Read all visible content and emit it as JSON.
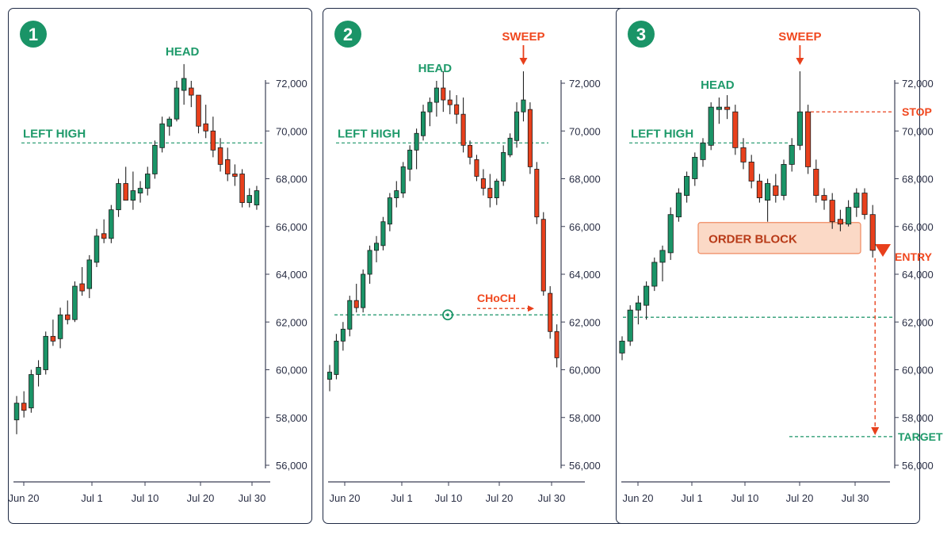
{
  "colors": {
    "bull": "#1a9467",
    "bear": "#e8401c",
    "green_text": "#1e9a6a",
    "orange_text": "#f0481f",
    "badge": "#1a9467",
    "axis": "#3b3f55",
    "ob_fill": "#fbd9c6",
    "ob_border": "#f08a60"
  },
  "chart_data": [
    {
      "type": "candlestick",
      "badge": "1",
      "x_ticks": [
        "Jun 20",
        "Jul 1",
        "Jul 10",
        "Jul 20",
        "Jul 30"
      ],
      "y_ticks": [
        "72,000",
        "70,000",
        "68,000",
        "66,000",
        "64,000",
        "62,000",
        "60,000",
        "58,000",
        "56,000"
      ],
      "ylim": [
        56000,
        72000
      ],
      "candles": [
        {
          "o": 57900,
          "h": 58900,
          "l": 57300,
          "c": 58600
        },
        {
          "o": 58600,
          "h": 59100,
          "l": 58000,
          "c": 58300
        },
        {
          "o": 58400,
          "h": 60000,
          "l": 58200,
          "c": 59800
        },
        {
          "o": 59800,
          "h": 60400,
          "l": 59300,
          "c": 60100
        },
        {
          "o": 60000,
          "h": 61600,
          "l": 59800,
          "c": 61400
        },
        {
          "o": 61400,
          "h": 62100,
          "l": 61000,
          "c": 61200
        },
        {
          "o": 61300,
          "h": 62600,
          "l": 60900,
          "c": 62300
        },
        {
          "o": 62300,
          "h": 62900,
          "l": 61900,
          "c": 62100
        },
        {
          "o": 62100,
          "h": 63700,
          "l": 62000,
          "c": 63500
        },
        {
          "o": 63600,
          "h": 64300,
          "l": 63100,
          "c": 63300
        },
        {
          "o": 63400,
          "h": 64800,
          "l": 63000,
          "c": 64600
        },
        {
          "o": 64500,
          "h": 65900,
          "l": 64300,
          "c": 65600
        },
        {
          "o": 65700,
          "h": 66300,
          "l": 65300,
          "c": 65500
        },
        {
          "o": 65500,
          "h": 66900,
          "l": 65300,
          "c": 66700
        },
        {
          "o": 66700,
          "h": 68000,
          "l": 66400,
          "c": 67800
        },
        {
          "o": 67800,
          "h": 68500,
          "l": 67100,
          "c": 67100
        },
        {
          "o": 67100,
          "h": 68300,
          "l": 66700,
          "c": 67500
        },
        {
          "o": 67400,
          "h": 67900,
          "l": 67000,
          "c": 67600
        },
        {
          "o": 67600,
          "h": 68500,
          "l": 67300,
          "c": 68200
        },
        {
          "o": 68200,
          "h": 69600,
          "l": 68000,
          "c": 69400
        },
        {
          "o": 69300,
          "h": 70600,
          "l": 69100,
          "c": 70300
        },
        {
          "o": 70200,
          "h": 70600,
          "l": 69800,
          "c": 70500
        },
        {
          "o": 70500,
          "h": 72100,
          "l": 70400,
          "c": 71800
        },
        {
          "o": 71700,
          "h": 72800,
          "l": 71100,
          "c": 72200
        },
        {
          "o": 71800,
          "h": 72100,
          "l": 71000,
          "c": 71500
        },
        {
          "o": 71500,
          "h": 71500,
          "l": 69900,
          "c": 70200
        },
        {
          "o": 70300,
          "h": 71100,
          "l": 69700,
          "c": 70000
        },
        {
          "o": 70000,
          "h": 70600,
          "l": 68900,
          "c": 69200
        },
        {
          "o": 69300,
          "h": 69700,
          "l": 68300,
          "c": 68600
        },
        {
          "o": 68800,
          "h": 69300,
          "l": 67900,
          "c": 68200
        },
        {
          "o": 68200,
          "h": 68600,
          "l": 67700,
          "c": 68100
        },
        {
          "o": 68200,
          "h": 68400,
          "l": 66800,
          "c": 67000
        },
        {
          "o": 67000,
          "h": 67600,
          "l": 66800,
          "c": 67300
        },
        {
          "o": 66900,
          "h": 67700,
          "l": 66700,
          "c": 67500
        }
      ],
      "annotations": [
        {
          "kind": "label",
          "text": "HEAD",
          "candle": 23
        },
        {
          "kind": "level",
          "text": "LEFT HIGH",
          "value": 69500
        }
      ]
    },
    {
      "type": "candlestick",
      "badge": "2",
      "x_ticks": [
        "Jun 20",
        "Jul 1",
        "Jul 10",
        "Jul 20",
        "Jul 30"
      ],
      "y_ticks": [
        "72,000",
        "70,000",
        "68,000",
        "66,000",
        "64,000",
        "62,000",
        "60,000",
        "58,000",
        "56,000"
      ],
      "ylim": [
        56000,
        72000
      ],
      "candles": [
        {
          "o": 59600,
          "h": 60200,
          "l": 59100,
          "c": 59900
        },
        {
          "o": 59800,
          "h": 61500,
          "l": 59600,
          "c": 61200
        },
        {
          "o": 61200,
          "h": 62000,
          "l": 60800,
          "c": 61700
        },
        {
          "o": 61700,
          "h": 63100,
          "l": 61400,
          "c": 62900
        },
        {
          "o": 62900,
          "h": 63600,
          "l": 62400,
          "c": 62600
        },
        {
          "o": 62600,
          "h": 64200,
          "l": 62400,
          "c": 64000
        },
        {
          "o": 64000,
          "h": 65200,
          "l": 63600,
          "c": 65000
        },
        {
          "o": 65000,
          "h": 65600,
          "l": 64500,
          "c": 65300
        },
        {
          "o": 65200,
          "h": 66400,
          "l": 65000,
          "c": 66200
        },
        {
          "o": 66100,
          "h": 67400,
          "l": 65800,
          "c": 67200
        },
        {
          "o": 67200,
          "h": 67900,
          "l": 66800,
          "c": 67500
        },
        {
          "o": 67400,
          "h": 68700,
          "l": 67200,
          "c": 68500
        },
        {
          "o": 68400,
          "h": 69400,
          "l": 67900,
          "c": 69200
        },
        {
          "o": 69200,
          "h": 70100,
          "l": 68400,
          "c": 69900
        },
        {
          "o": 69800,
          "h": 71100,
          "l": 69600,
          "c": 70800
        },
        {
          "o": 70800,
          "h": 71400,
          "l": 70200,
          "c": 71200
        },
        {
          "o": 71200,
          "h": 72100,
          "l": 70600,
          "c": 71800
        },
        {
          "o": 71800,
          "h": 72500,
          "l": 70800,
          "c": 71300
        },
        {
          "o": 71300,
          "h": 71700,
          "l": 70700,
          "c": 71100
        },
        {
          "o": 71100,
          "h": 71500,
          "l": 70300,
          "c": 70700
        },
        {
          "o": 70700,
          "h": 71400,
          "l": 69100,
          "c": 69400
        },
        {
          "o": 69400,
          "h": 69600,
          "l": 68600,
          "c": 68900
        },
        {
          "o": 68800,
          "h": 69000,
          "l": 67900,
          "c": 68100
        },
        {
          "o": 68000,
          "h": 68400,
          "l": 67300,
          "c": 67600
        },
        {
          "o": 67600,
          "h": 68200,
          "l": 66800,
          "c": 67200
        },
        {
          "o": 67200,
          "h": 68000,
          "l": 66900,
          "c": 67900
        },
        {
          "o": 67900,
          "h": 69400,
          "l": 67700,
          "c": 69100
        },
        {
          "o": 69000,
          "h": 69900,
          "l": 68900,
          "c": 69700
        },
        {
          "o": 69600,
          "h": 71200,
          "l": 69300,
          "c": 70800
        },
        {
          "o": 70800,
          "h": 72500,
          "l": 70400,
          "c": 71300
        },
        {
          "o": 70900,
          "h": 71200,
          "l": 68200,
          "c": 68500
        },
        {
          "o": 68400,
          "h": 68700,
          "l": 66100,
          "c": 66400
        },
        {
          "o": 66300,
          "h": 66600,
          "l": 63100,
          "c": 63300
        },
        {
          "o": 63200,
          "h": 63500,
          "l": 61300,
          "c": 61600
        },
        {
          "o": 61600,
          "h": 61900,
          "l": 60100,
          "c": 60500
        }
      ],
      "annotations": [
        {
          "kind": "label",
          "text": "HEAD",
          "candle": 16
        },
        {
          "kind": "label",
          "text": "SWEEP",
          "candle": 29
        },
        {
          "kind": "level",
          "text": "LEFT HIGH",
          "value": 69500
        },
        {
          "kind": "level",
          "text": "CHoCH",
          "value": 62300
        }
      ]
    },
    {
      "type": "candlestick",
      "badge": "3",
      "x_ticks": [
        "Jun 20",
        "Jul 1",
        "Jul 10",
        "Jul 20",
        "Jul 30"
      ],
      "y_ticks": [
        "72,000",
        "70,000",
        "68,000",
        "66,000",
        "64,000",
        "62,000",
        "60,000",
        "58,000",
        "56,000"
      ],
      "ylim": [
        56000,
        72000
      ],
      "candles": [
        {
          "o": 60700,
          "h": 61400,
          "l": 60400,
          "c": 61200
        },
        {
          "o": 61200,
          "h": 62700,
          "l": 61000,
          "c": 62500
        },
        {
          "o": 62500,
          "h": 63100,
          "l": 61900,
          "c": 62800
        },
        {
          "o": 62700,
          "h": 63700,
          "l": 62100,
          "c": 63500
        },
        {
          "o": 63500,
          "h": 64700,
          "l": 63300,
          "c": 64500
        },
        {
          "o": 64500,
          "h": 65200,
          "l": 63700,
          "c": 65000
        },
        {
          "o": 64900,
          "h": 66800,
          "l": 64600,
          "c": 66500
        },
        {
          "o": 66400,
          "h": 67600,
          "l": 66200,
          "c": 67400
        },
        {
          "o": 67300,
          "h": 68300,
          "l": 67000,
          "c": 68100
        },
        {
          "o": 68000,
          "h": 69100,
          "l": 67700,
          "c": 68900
        },
        {
          "o": 68800,
          "h": 69700,
          "l": 68500,
          "c": 69500
        },
        {
          "o": 69400,
          "h": 71200,
          "l": 69200,
          "c": 71000
        },
        {
          "o": 70900,
          "h": 71400,
          "l": 70300,
          "c": 71000
        },
        {
          "o": 71000,
          "h": 71500,
          "l": 70500,
          "c": 70900
        },
        {
          "o": 70800,
          "h": 71100,
          "l": 69000,
          "c": 69300
        },
        {
          "o": 69300,
          "h": 69700,
          "l": 68400,
          "c": 68700
        },
        {
          "o": 68700,
          "h": 69000,
          "l": 67600,
          "c": 67900
        },
        {
          "o": 67900,
          "h": 68200,
          "l": 67000,
          "c": 67200
        },
        {
          "o": 67100,
          "h": 68000,
          "l": 66200,
          "c": 67800
        },
        {
          "o": 67700,
          "h": 68200,
          "l": 67000,
          "c": 67300
        },
        {
          "o": 67300,
          "h": 68800,
          "l": 67100,
          "c": 68600
        },
        {
          "o": 68600,
          "h": 69700,
          "l": 68300,
          "c": 69400
        },
        {
          "o": 69400,
          "h": 72500,
          "l": 69200,
          "c": 70800
        },
        {
          "o": 70800,
          "h": 71100,
          "l": 68200,
          "c": 68500
        },
        {
          "o": 68400,
          "h": 68800,
          "l": 67000,
          "c": 67300
        },
        {
          "o": 67300,
          "h": 67600,
          "l": 66700,
          "c": 67100
        },
        {
          "o": 67100,
          "h": 67400,
          "l": 65900,
          "c": 66200
        },
        {
          "o": 66300,
          "h": 66700,
          "l": 65800,
          "c": 66100
        },
        {
          "o": 66100,
          "h": 67100,
          "l": 66000,
          "c": 66800
        },
        {
          "o": 66800,
          "h": 67600,
          "l": 66400,
          "c": 67400
        },
        {
          "o": 67400,
          "h": 67600,
          "l": 66300,
          "c": 66500
        },
        {
          "o": 66500,
          "h": 66900,
          "l": 64700,
          "c": 65000
        }
      ],
      "annotations": [
        {
          "kind": "label",
          "text": "HEAD",
          "candle": 12
        },
        {
          "kind": "label",
          "text": "SWEEP",
          "candle": 22
        },
        {
          "kind": "level",
          "text": "LEFT HIGH",
          "value": 69500
        },
        {
          "kind": "level",
          "text": "",
          "value": 62200
        },
        {
          "kind": "level",
          "text": "STOP",
          "value": 70800
        },
        {
          "kind": "zone",
          "text": "ORDER BLOCK",
          "low": 65000,
          "high": 66100
        },
        {
          "kind": "level",
          "text": "ENTRY",
          "value": 65000
        },
        {
          "kind": "level",
          "text": "TARGET",
          "value": 57200
        }
      ]
    }
  ]
}
